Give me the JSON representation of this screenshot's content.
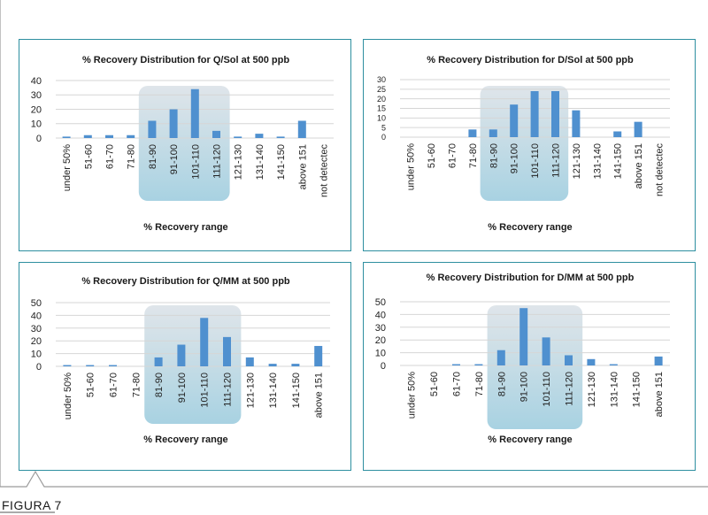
{
  "figure_label": "FIGURA 7",
  "colors": {
    "bar": "#4f90cf",
    "highlight": "#a8d2e2",
    "frame": "#2e8fa0",
    "grid": "#d6d6d6"
  },
  "chart_data": [
    {
      "type": "bar",
      "title": "% Recovery Distribution for Q/Sol at 500 ppb",
      "xlabel": "% Recovery range",
      "ylabel": "",
      "categories": [
        "under 50%",
        "51-60",
        "61-70",
        "71-80",
        "81-90",
        "91-100",
        "101-110",
        "111-120",
        "121-130",
        "131-140",
        "141-150",
        "above 151",
        "not detectec"
      ],
      "values": [
        1,
        2,
        2,
        2,
        12,
        20,
        34,
        5,
        1,
        3,
        1,
        12,
        0
      ],
      "yticks": [
        0,
        10,
        20,
        30,
        40
      ],
      "ylim": [
        0,
        40
      ],
      "highlight_categories": [
        "81-90",
        "111-120"
      ],
      "grid": true,
      "legend": "none"
    },
    {
      "type": "bar",
      "title": "% Recovery Distribution for D/Sol at 500 ppb",
      "xlabel": "% Recovery range",
      "ylabel": "",
      "categories": [
        "under 50%",
        "51-60",
        "61-70",
        "71-80",
        "81-90",
        "91-100",
        "101-110",
        "111-120",
        "121-130",
        "131-140",
        "141-150",
        "above 151",
        "not detectec"
      ],
      "values": [
        0,
        0,
        0,
        4,
        4,
        17,
        24,
        24,
        14,
        0,
        3,
        8,
        0
      ],
      "yticks": [
        0,
        5,
        10,
        15,
        20,
        25,
        30
      ],
      "ylim": [
        0,
        30
      ],
      "highlight_categories": [
        "81-90",
        "111-120"
      ],
      "grid": true,
      "legend": "none"
    },
    {
      "type": "bar",
      "title": "% Recovery Distribution for Q/MM at 500 ppb",
      "xlabel": "% Recovery range",
      "ylabel": "",
      "categories": [
        "under 50%",
        "51-60",
        "61-70",
        "71-80",
        "81-90",
        "91-100",
        "101-110",
        "111-120",
        "121-130",
        "131-140",
        "141-150",
        "above 151"
      ],
      "values": [
        1,
        1,
        1,
        0,
        7,
        17,
        38,
        23,
        7,
        2,
        2,
        16
      ],
      "yticks": [
        0,
        10,
        20,
        30,
        40,
        50
      ],
      "ylim": [
        0,
        50
      ],
      "highlight_categories": [
        "81-90",
        "111-120"
      ],
      "grid": true,
      "legend": "none"
    },
    {
      "type": "bar",
      "title": "% Recovery Distribution for D/MM at 500 ppb",
      "xlabel": "% Recovery range",
      "ylabel": "",
      "categories": [
        "under 50%",
        "51-60",
        "61-70",
        "71-80",
        "81-90",
        "91-100",
        "101-110",
        "111-120",
        "121-130",
        "131-140",
        "141-150",
        "above 151"
      ],
      "values": [
        0,
        0,
        1,
        1,
        12,
        45,
        22,
        8,
        5,
        1,
        0,
        7
      ],
      "yticks": [
        0,
        10,
        20,
        30,
        40,
        50
      ],
      "ylim": [
        0,
        50
      ],
      "highlight_categories": [
        "81-90",
        "111-120"
      ],
      "grid": true,
      "legend": "none"
    }
  ]
}
